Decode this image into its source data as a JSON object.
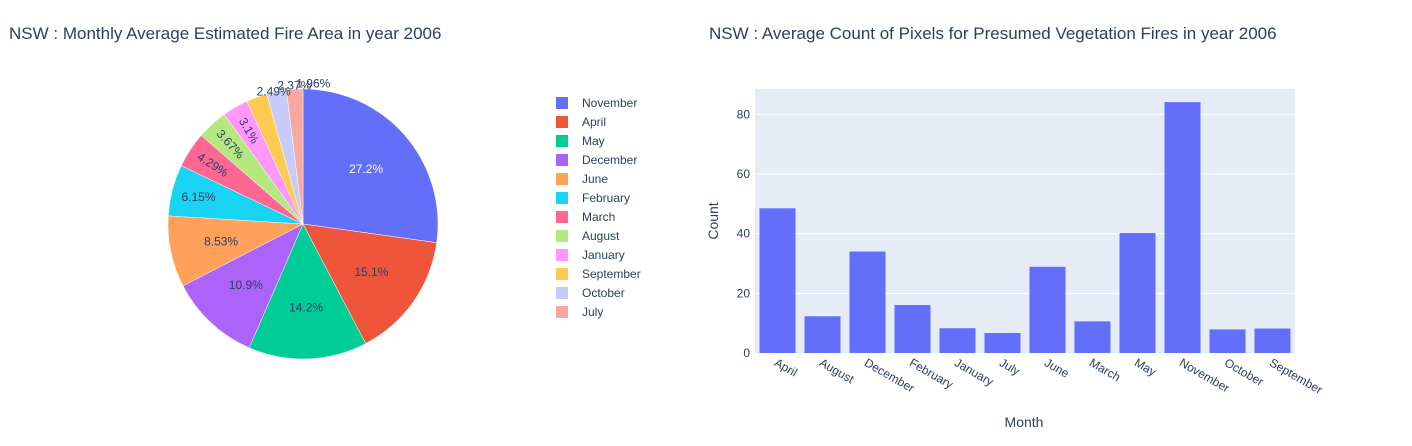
{
  "chart_data": [
    {
      "type": "pie",
      "title": "NSW : Monthly Average Estimated Fire Area in year 2006",
      "labels": [
        "November",
        "April",
        "May",
        "December",
        "June",
        "February",
        "March",
        "August",
        "January",
        "September",
        "October",
        "July"
      ],
      "values": [
        27.2,
        15.1,
        14.2,
        10.9,
        8.53,
        6.15,
        4.29,
        3.67,
        3.1,
        2.49,
        2.37,
        1.96
      ],
      "value_labels": [
        "27.2%",
        "15.1%",
        "14.2%",
        "10.9%",
        "8.53%",
        "6.15%",
        "4.29%",
        "3.67%",
        "3.1%",
        "2.49%",
        "2.37%",
        "1.96%"
      ],
      "colors": [
        "#636efa",
        "#EF553B",
        "#00cc96",
        "#ab63fa",
        "#FFA15A",
        "#19d3f3",
        "#FF6692",
        "#B6E880",
        "#FF97FF",
        "#FECB52",
        "#c6cbf7",
        "#f7a8a0"
      ],
      "legend_position": "right",
      "legend": [
        "November",
        "April",
        "May",
        "December",
        "June",
        "February",
        "March",
        "August",
        "January",
        "September",
        "October",
        "July"
      ]
    },
    {
      "type": "bar",
      "title": "NSW : Average Count of Pixels for Presumed Vegetation Fires in year 2006",
      "categories": [
        "April",
        "August",
        "December",
        "February",
        "January",
        "July",
        "June",
        "March",
        "May",
        "November",
        "October",
        "September"
      ],
      "values": [
        48.5,
        12.3,
        34,
        16.1,
        8.3,
        6.7,
        28.9,
        10.6,
        40.2,
        84.1,
        7.9,
        8.2
      ],
      "xlabel": "Month",
      "ylabel": "Count",
      "ylim": [
        0,
        88.5
      ],
      "yticks": [
        0,
        20,
        40,
        60,
        80
      ],
      "bar_color": "#636efa",
      "plot_bg": "#e5ecf6",
      "grid": true
    }
  ]
}
